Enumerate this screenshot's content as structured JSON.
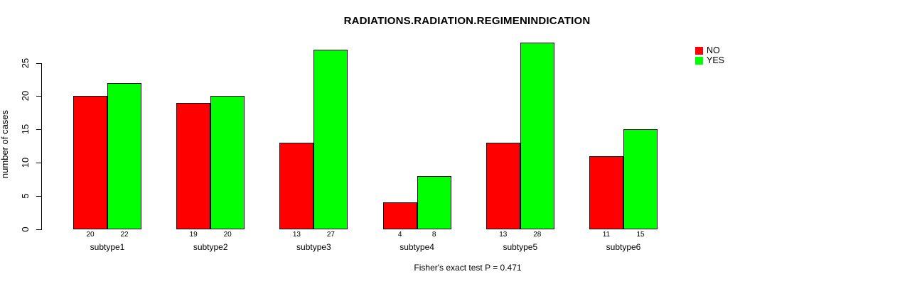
{
  "chart_data": {
    "type": "bar",
    "title": "RADIATIONS.RADIATION.REGIMENINDICATION",
    "ylabel": "number of cases",
    "xlabel": "",
    "categories": [
      "subtype1",
      "subtype2",
      "subtype3",
      "subtype4",
      "subtype5",
      "subtype6"
    ],
    "series": [
      {
        "name": "NO",
        "color": "#ff0000",
        "values": [
          20,
          19,
          13,
          4,
          13,
          11
        ]
      },
      {
        "name": "YES",
        "color": "#00ff00",
        "values": [
          22,
          20,
          27,
          8,
          28,
          15
        ]
      }
    ],
    "yticks": [
      0,
      5,
      10,
      15,
      20,
      25
    ],
    "ylim": [
      0,
      28
    ],
    "grid": false,
    "bar_value_labels_shown": true,
    "legend": {
      "position": "top-right"
    },
    "footnote": "Fisher's exact test P = 0.471"
  }
}
